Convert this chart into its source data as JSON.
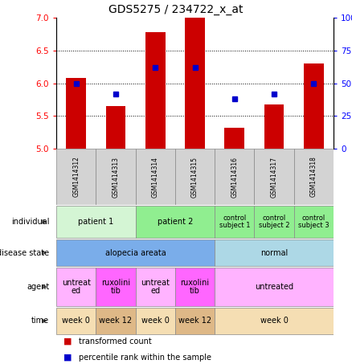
{
  "title": "GDS5275 / 234722_x_at",
  "samples": [
    "GSM1414312",
    "GSM1414313",
    "GSM1414314",
    "GSM1414315",
    "GSM1414316",
    "GSM1414317",
    "GSM1414318"
  ],
  "transformed_count": [
    6.08,
    5.65,
    6.78,
    7.0,
    5.32,
    5.67,
    6.3
  ],
  "percentile_rank": [
    50,
    42,
    62,
    62,
    38,
    42,
    50
  ],
  "ylim_left": [
    5.0,
    7.0
  ],
  "ylim_right": [
    0,
    100
  ],
  "yticks_left": [
    5.0,
    5.5,
    6.0,
    6.5,
    7.0
  ],
  "yticks_right": [
    0,
    25,
    50,
    75,
    100
  ],
  "bar_color": "#cc0000",
  "dot_color": "#0000cc",
  "bar_bottom": 5.0,
  "rows": [
    {
      "label": "individual",
      "cells": [
        {
          "text": "patient 1",
          "span": 2,
          "color": "#d4f5d4"
        },
        {
          "text": "patient 2",
          "span": 2,
          "color": "#90ee90"
        },
        {
          "text": "control\nsubject 1",
          "span": 1,
          "color": "#90ee90"
        },
        {
          "text": "control\nsubject 2",
          "span": 1,
          "color": "#90ee90"
        },
        {
          "text": "control\nsubject 3",
          "span": 1,
          "color": "#90ee90"
        }
      ]
    },
    {
      "label": "disease state",
      "cells": [
        {
          "text": "alopecia areata",
          "span": 4,
          "color": "#7aadea"
        },
        {
          "text": "normal",
          "span": 3,
          "color": "#add8e6"
        }
      ]
    },
    {
      "label": "agent",
      "cells": [
        {
          "text": "untreat\ned",
          "span": 1,
          "color": "#ffb3ff"
        },
        {
          "text": "ruxolini\ntib",
          "span": 1,
          "color": "#ff66ff"
        },
        {
          "text": "untreat\ned",
          "span": 1,
          "color": "#ffb3ff"
        },
        {
          "text": "ruxolini\ntib",
          "span": 1,
          "color": "#ff66ff"
        },
        {
          "text": "untreated",
          "span": 3,
          "color": "#ffb3ff"
        }
      ]
    },
    {
      "label": "time",
      "cells": [
        {
          "text": "week 0",
          "span": 1,
          "color": "#f5deb3"
        },
        {
          "text": "week 12",
          "span": 1,
          "color": "#deb887"
        },
        {
          "text": "week 0",
          "span": 1,
          "color": "#f5deb3"
        },
        {
          "text": "week 12",
          "span": 1,
          "color": "#deb887"
        },
        {
          "text": "week 0",
          "span": 3,
          "color": "#f5deb3"
        }
      ]
    }
  ],
  "row_labels": [
    "individual",
    "disease state",
    "agent",
    "time"
  ]
}
